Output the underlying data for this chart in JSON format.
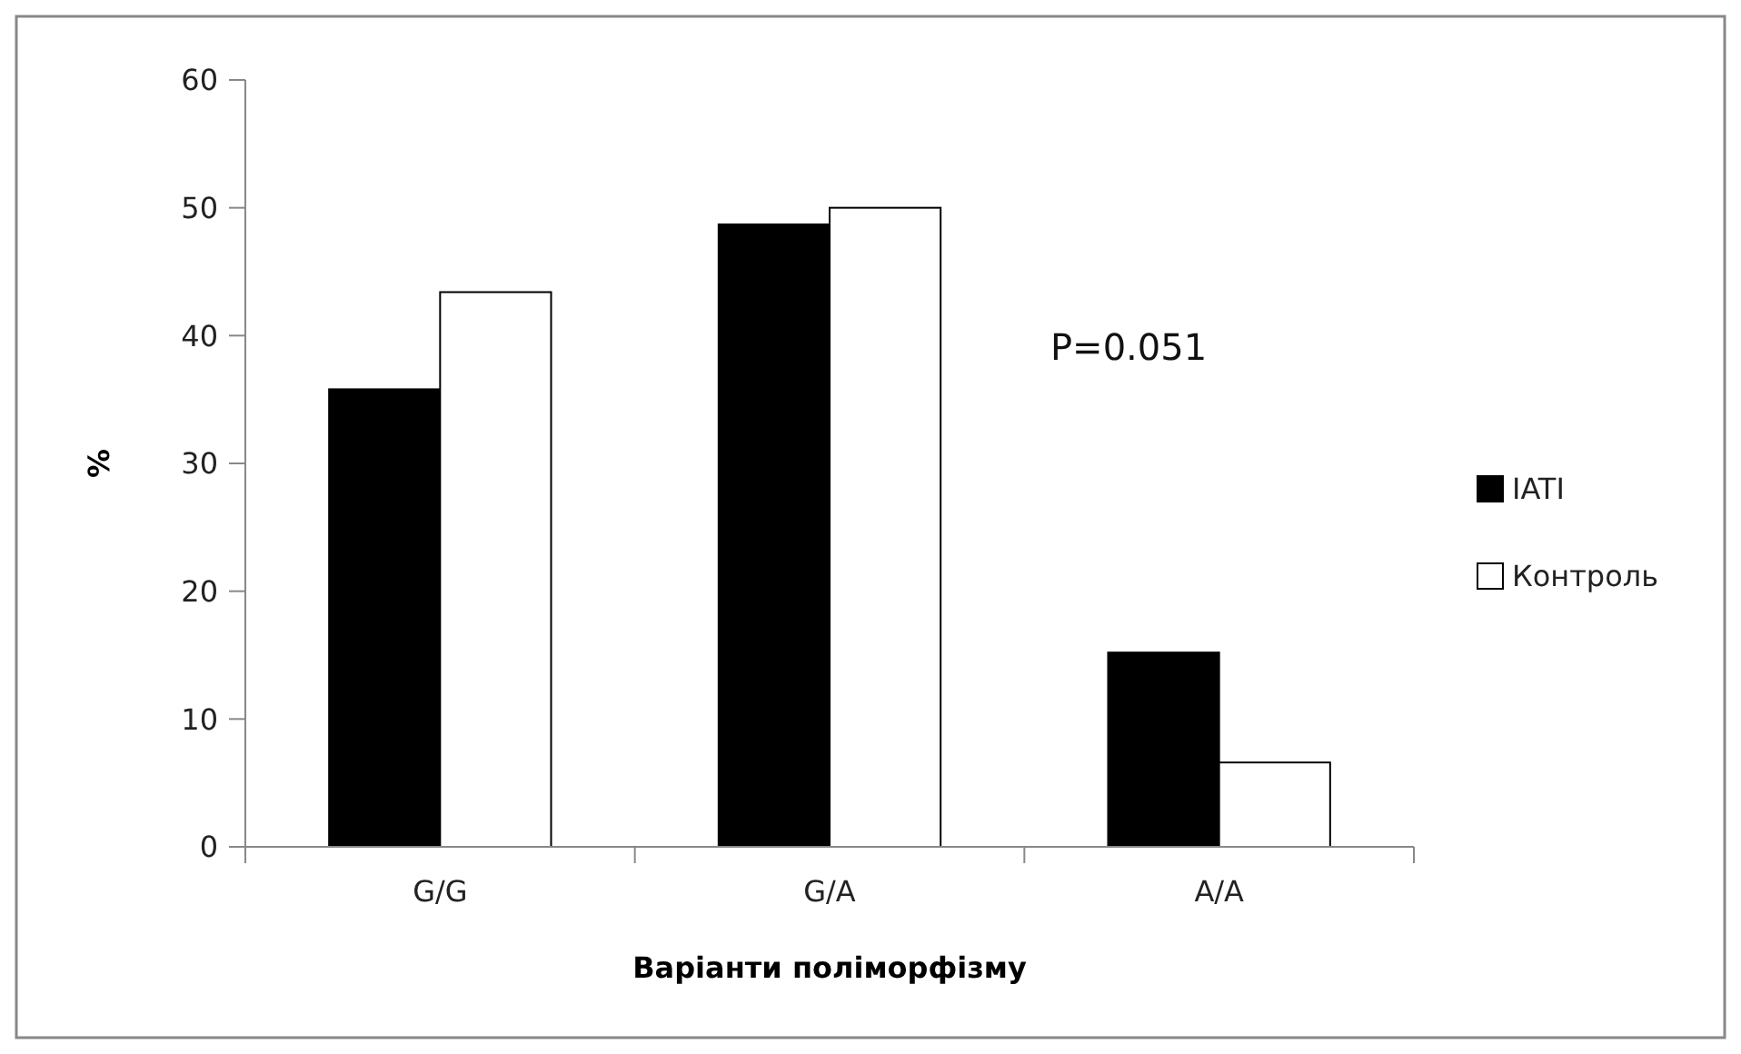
{
  "chart_data": {
    "type": "bar",
    "xlabel": "Варіанти поліморфізму",
    "ylabel": "%",
    "categories": [
      "G/G",
      "G/A",
      "A/A"
    ],
    "series": [
      {
        "name": "IATI",
        "color": "#000000",
        "values": [
          35.8,
          48.7,
          15.2
        ]
      },
      {
        "name": "Контроль",
        "color": "#ffffff",
        "values": [
          43.4,
          50.0,
          6.6
        ]
      }
    ],
    "ylim": [
      0,
      60
    ],
    "yticks": [
      0,
      10,
      20,
      30,
      40,
      50,
      60
    ],
    "grid": false,
    "legend": "right",
    "annotations": [
      "P=0.051"
    ]
  }
}
